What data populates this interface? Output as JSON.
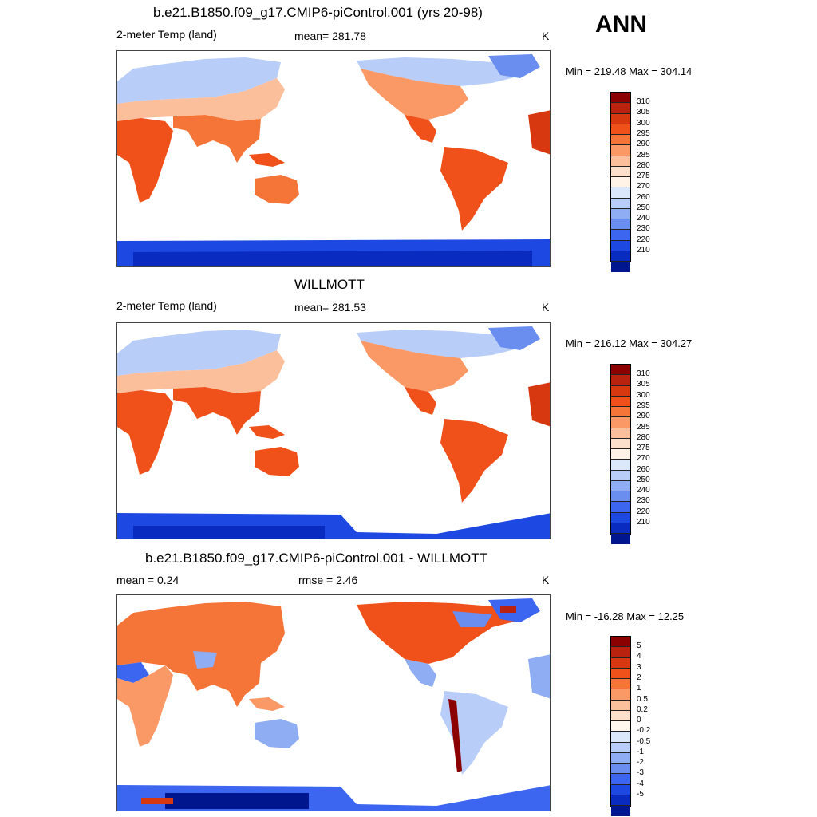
{
  "season": "ANN",
  "panels": [
    {
      "title": "b.e21.B1850.f09_g17.CMIP6-piControl.001 (yrs 20-98)",
      "left_label": "2-meter Temp (land)",
      "center_label": "mean= 281.78",
      "units": "K",
      "minmax": "Min = 219.48 Max = 304.14",
      "colorbar_labels": [
        "310",
        "305",
        "300",
        "295",
        "290",
        "285",
        "280",
        "275",
        "270",
        "260",
        "250",
        "240",
        "230",
        "220",
        "210"
      ]
    },
    {
      "title": "WILLMOTT",
      "left_label": "2-meter Temp (land)",
      "center_label": "mean= 281.53",
      "units": "K",
      "minmax": "Min = 216.12 Max = 304.27",
      "colorbar_labels": [
        "310",
        "305",
        "300",
        "295",
        "290",
        "285",
        "280",
        "275",
        "270",
        "260",
        "250",
        "240",
        "230",
        "220",
        "210"
      ]
    },
    {
      "title": "b.e21.B1850.f09_g17.CMIP6-piControl.001 - WILLMOTT",
      "left_label": "mean =   0.24",
      "center_label": "rmse =   2.46",
      "units": "K",
      "minmax": "Min = -16.28 Max =  12.25",
      "colorbar_labels": [
        "5",
        "4",
        "3",
        "2",
        "1",
        "0.5",
        "0.2",
        "0",
        "-0.2",
        "-0.5",
        "-1",
        "-2",
        "-3",
        "-4",
        "-5"
      ]
    }
  ],
  "colors": {
    "abs_scale": [
      "#8b0000",
      "#b8220e",
      "#d8380f",
      "#f0501a",
      "#f57438",
      "#fa9866",
      "#fcbf9c",
      "#fde0cb",
      "#fff3e8",
      "#dbe8fc",
      "#b8cdf8",
      "#8fadf2",
      "#6a8df0",
      "#3d66f0",
      "#1e48e2",
      "#0a2bc0",
      "#00168e"
    ],
    "diff_scale": [
      "#8b0000",
      "#b8220e",
      "#d8380f",
      "#f0501a",
      "#f57438",
      "#fa9866",
      "#fcbf9c",
      "#fde0cb",
      "#fff8ef",
      "#dbe8fc",
      "#b8cdf8",
      "#8fadf2",
      "#6a8df0",
      "#3d66f0",
      "#1e48e2",
      "#0a2bc0",
      "#00168e"
    ]
  }
}
